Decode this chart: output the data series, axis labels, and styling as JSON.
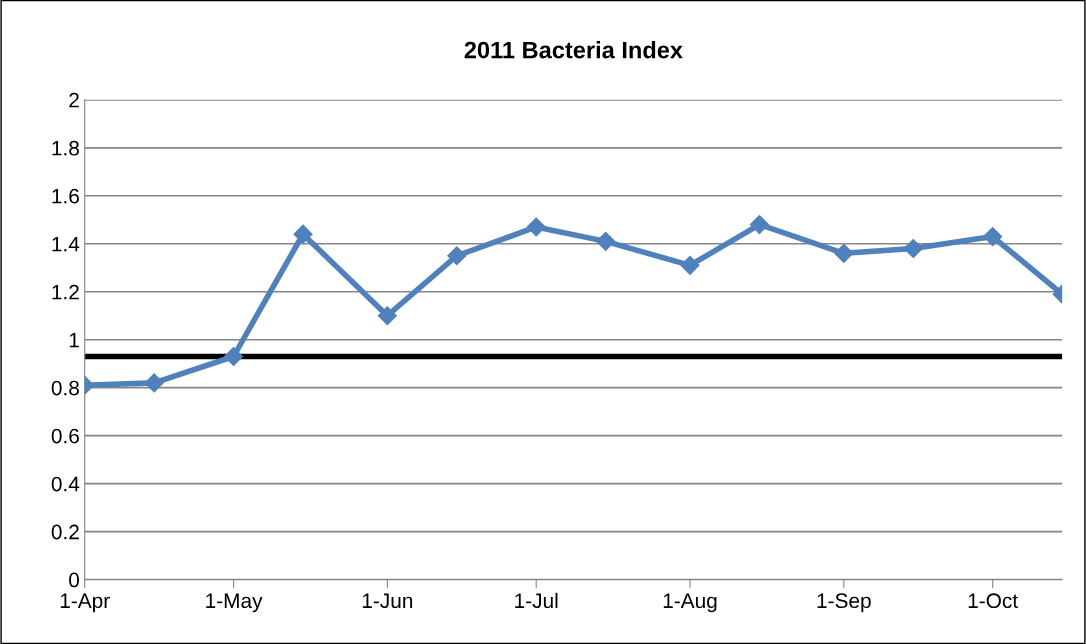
{
  "chart_data": {
    "type": "line",
    "title": "2011 Bacteria Index",
    "x": [
      "2011-04-01",
      "2011-04-15",
      "2011-05-01",
      "2011-05-15",
      "2011-06-01",
      "2011-06-15",
      "2011-07-01",
      "2011-07-15",
      "2011-08-01",
      "2011-08-15",
      "2011-09-01",
      "2011-09-15",
      "2011-10-01",
      "2011-10-15"
    ],
    "series": [
      {
        "color": "#4f81bd",
        "values": [
          0.81,
          0.82,
          0.93,
          1.44,
          1.1,
          1.35,
          1.47,
          1.41,
          1.31,
          1.48,
          1.36,
          1.38,
          1.43,
          1.19
        ]
      }
    ],
    "xlim": [
      "2011-04-01",
      "2011-10-15"
    ],
    "xticks": [
      {
        "value": "2011-04-01",
        "label": "1-Apr"
      },
      {
        "value": "2011-05-01",
        "label": "1-May"
      },
      {
        "value": "2011-06-01",
        "label": "1-Jun"
      },
      {
        "value": "2011-07-01",
        "label": "1-Jul"
      },
      {
        "value": "2011-08-01",
        "label": "1-Aug"
      },
      {
        "value": "2011-09-01",
        "label": "1-Sep"
      },
      {
        "value": "2011-10-01",
        "label": "1-Oct"
      }
    ],
    "ylim": [
      0,
      2
    ],
    "yticks": [
      0,
      {
        "value": 0.2,
        "label": "0.2"
      },
      {
        "value": 0.4,
        "label": "0.4"
      },
      {
        "value": 0.6,
        "label": "0.6"
      },
      {
        "value": 0.8,
        "label": "0.8"
      },
      1,
      {
        "value": 1.2,
        "label": "1.2"
      },
      {
        "value": 1.4,
        "label": "1.4"
      },
      {
        "value": 1.6,
        "label": "1.6"
      },
      {
        "value": 1.8,
        "label": "1.8"
      },
      2
    ],
    "ref_lines": [
      {
        "axis": "y",
        "value": 0.93,
        "color": "#000000"
      }
    ],
    "grid": "y",
    "marker": "diamond",
    "line_style": "solid",
    "legend": false
  }
}
